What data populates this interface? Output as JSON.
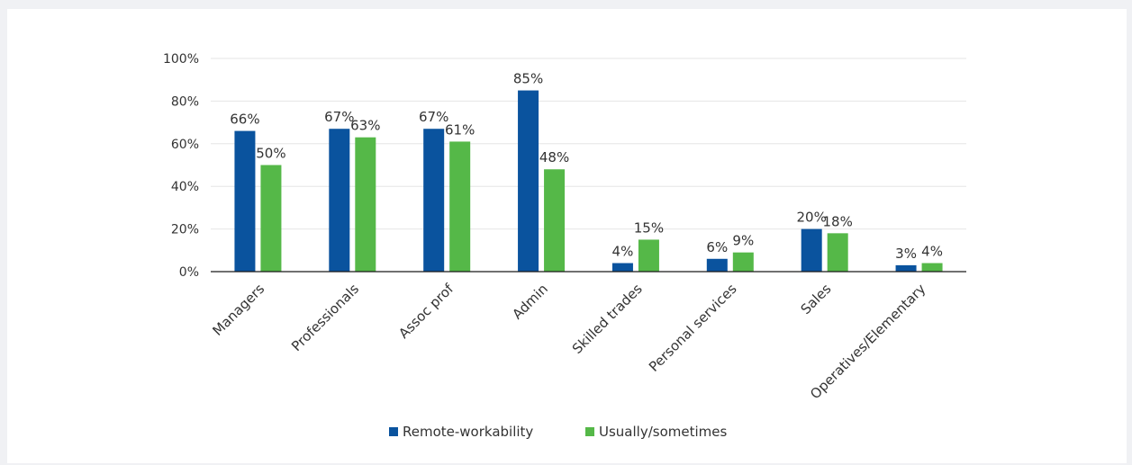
{
  "colors": {
    "series_1": "#0a539e",
    "series_2": "#55b848",
    "grid": "#e6e6e6",
    "axis": "#1a1a1a",
    "text": "#333333"
  },
  "chart_data": {
    "type": "bar",
    "categories": [
      "Managers",
      "Professionals",
      "Assoc prof",
      "Admin",
      "Skilled trades",
      "Personal services",
      "Sales",
      "Operatives/Elementary"
    ],
    "series": [
      {
        "name": "Remote-workability",
        "values": [
          66,
          67,
          67,
          85,
          4,
          6,
          20,
          3
        ],
        "labels": [
          "66%",
          "67%",
          "67%",
          "85%",
          "4%",
          "6%",
          "20%",
          "3%"
        ]
      },
      {
        "name": "Usually/sometimes",
        "values": [
          50,
          63,
          61,
          48,
          15,
          9,
          18,
          4
        ],
        "labels": [
          "50%",
          "63%",
          "61%",
          "48%",
          "15%",
          "9%",
          "18%",
          "4%"
        ]
      }
    ],
    "y_ticks": [
      "0%",
      "20%",
      "40%",
      "60%",
      "80%",
      "100%"
    ],
    "ylim": [
      0,
      100
    ],
    "grid": true,
    "legend_position": "bottom",
    "title": "",
    "xlabel": "",
    "ylabel": ""
  }
}
